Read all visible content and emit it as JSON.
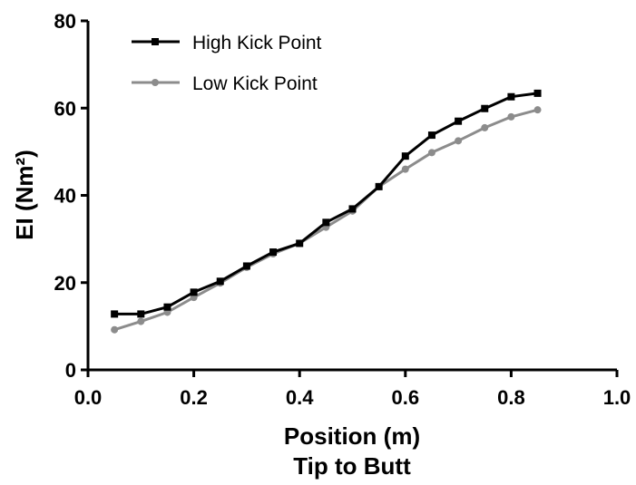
{
  "chart_data": {
    "type": "line",
    "title": "",
    "xlabel": "Position (m)",
    "xlabel2": "Tip to Butt",
    "ylabel": "EI (Nm²)",
    "xlim": [
      0.0,
      1.0
    ],
    "ylim": [
      0,
      80
    ],
    "xticks": [
      "0.0",
      "0.2",
      "0.4",
      "0.6",
      "0.8",
      "1.0"
    ],
    "yticks": [
      "0",
      "20",
      "40",
      "60",
      "80"
    ],
    "grid": false,
    "legend_position": "top-left",
    "series": [
      {
        "name": "High Kick Point",
        "color": "#000000",
        "marker": "square",
        "x": [
          0.05,
          0.1,
          0.15,
          0.2,
          0.25,
          0.3,
          0.35,
          0.4,
          0.45,
          0.5,
          0.55,
          0.6,
          0.65,
          0.7,
          0.75,
          0.8,
          0.85
        ],
        "y": [
          12.8,
          12.8,
          14.4,
          17.8,
          20.3,
          23.8,
          27.0,
          29.0,
          33.8,
          36.9,
          42.0,
          49.0,
          53.8,
          57.0,
          59.9,
          62.6,
          63.4
        ]
      },
      {
        "name": "Low Kick Point",
        "color": "#8c8c8c",
        "marker": "circle",
        "x": [
          0.05,
          0.1,
          0.15,
          0.2,
          0.25,
          0.3,
          0.35,
          0.4,
          0.45,
          0.5,
          0.55,
          0.6,
          0.65,
          0.7,
          0.75,
          0.8,
          0.85
        ],
        "y": [
          9.2,
          11.1,
          13.2,
          16.6,
          19.9,
          23.5,
          26.6,
          29.0,
          32.7,
          36.4,
          42.0,
          46.0,
          49.8,
          52.5,
          55.5,
          58.0,
          59.6
        ]
      }
    ]
  }
}
